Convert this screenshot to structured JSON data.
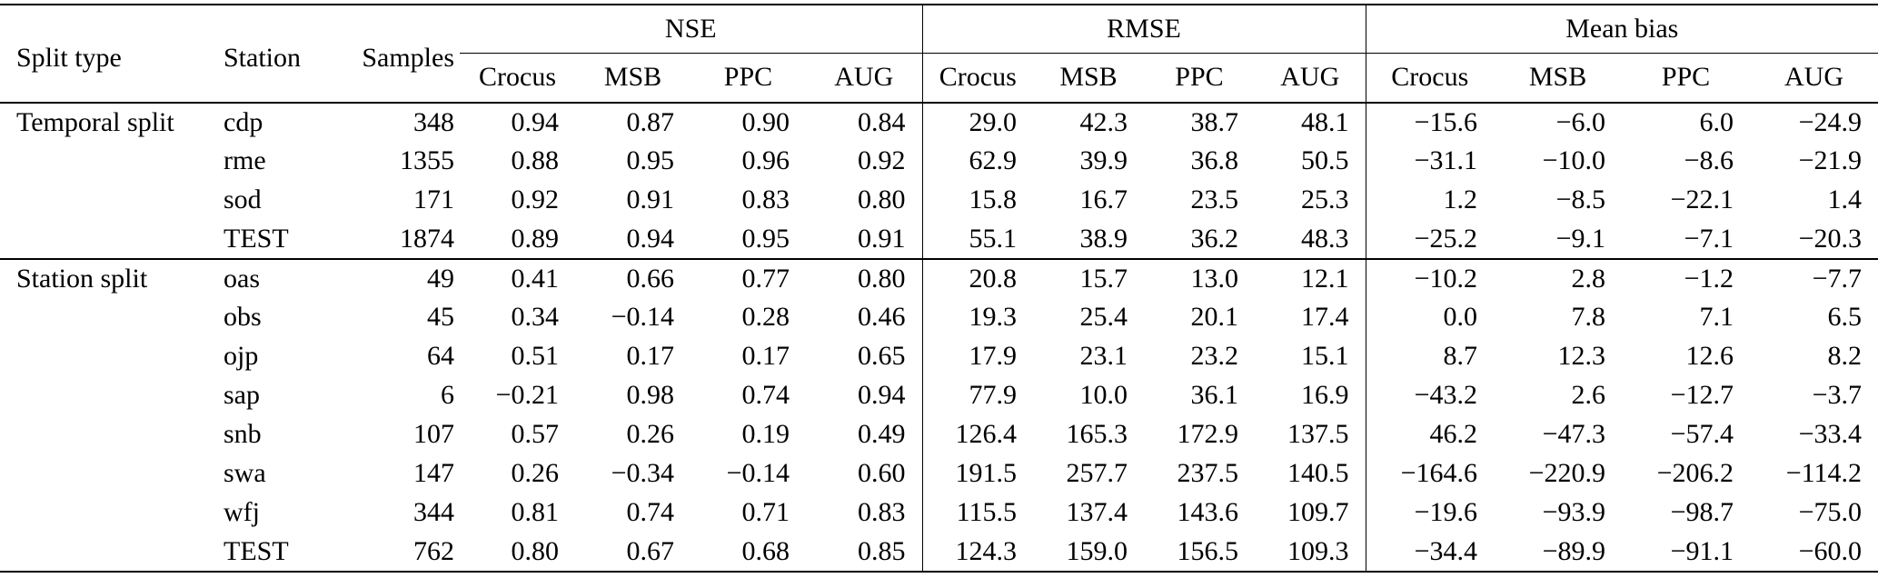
{
  "colors": {
    "text": "#000000",
    "background": "#ffffff",
    "rule": "#000000"
  },
  "table": {
    "header": {
      "split_type": "Split type",
      "station": "Station",
      "samples": "Samples",
      "groups": [
        {
          "label": "NSE",
          "cols": [
            "Crocus",
            "MSB",
            "PPC",
            "AUG"
          ]
        },
        {
          "label": "RMSE",
          "cols": [
            "Crocus",
            "MSB",
            "PPC",
            "AUG"
          ]
        },
        {
          "label": "Mean bias",
          "cols": [
            "Crocus",
            "MSB",
            "PPC",
            "AUG"
          ]
        }
      ]
    },
    "sections": [
      {
        "split_type": "Temporal split",
        "rows": [
          {
            "station": "cdp",
            "samples": "348",
            "values": [
              "0.94",
              "0.87",
              "0.90",
              "0.84",
              "29.0",
              "42.3",
              "38.7",
              "48.1",
              "−15.6",
              "−6.0",
              "6.0",
              "−24.9"
            ]
          },
          {
            "station": "rme",
            "samples": "1355",
            "values": [
              "0.88",
              "0.95",
              "0.96",
              "0.92",
              "62.9",
              "39.9",
              "36.8",
              "50.5",
              "−31.1",
              "−10.0",
              "−8.6",
              "−21.9"
            ]
          },
          {
            "station": "sod",
            "samples": "171",
            "values": [
              "0.92",
              "0.91",
              "0.83",
              "0.80",
              "15.8",
              "16.7",
              "23.5",
              "25.3",
              "1.2",
              "−8.5",
              "−22.1",
              "1.4"
            ]
          },
          {
            "station": "TEST",
            "samples": "1874",
            "values": [
              "0.89",
              "0.94",
              "0.95",
              "0.91",
              "55.1",
              "38.9",
              "36.2",
              "48.3",
              "−25.2",
              "−9.1",
              "−7.1",
              "−20.3"
            ]
          }
        ]
      },
      {
        "split_type": "Station split",
        "rows": [
          {
            "station": "oas",
            "samples": "49",
            "values": [
              "0.41",
              "0.66",
              "0.77",
              "0.80",
              "20.8",
              "15.7",
              "13.0",
              "12.1",
              "−10.2",
              "2.8",
              "−1.2",
              "−7.7"
            ]
          },
          {
            "station": "obs",
            "samples": "45",
            "values": [
              "0.34",
              "−0.14",
              "0.28",
              "0.46",
              "19.3",
              "25.4",
              "20.1",
              "17.4",
              "0.0",
              "7.8",
              "7.1",
              "6.5"
            ]
          },
          {
            "station": "ojp",
            "samples": "64",
            "values": [
              "0.51",
              "0.17",
              "0.17",
              "0.65",
              "17.9",
              "23.1",
              "23.2",
              "15.1",
              "8.7",
              "12.3",
              "12.6",
              "8.2"
            ]
          },
          {
            "station": "sap",
            "samples": "6",
            "values": [
              "−0.21",
              "0.98",
              "0.74",
              "0.94",
              "77.9",
              "10.0",
              "36.1",
              "16.9",
              "−43.2",
              "2.6",
              "−12.7",
              "−3.7"
            ]
          },
          {
            "station": "snb",
            "samples": "107",
            "values": [
              "0.57",
              "0.26",
              "0.19",
              "0.49",
              "126.4",
              "165.3",
              "172.9",
              "137.5",
              "46.2",
              "−47.3",
              "−57.4",
              "−33.4"
            ]
          },
          {
            "station": "swa",
            "samples": "147",
            "values": [
              "0.26",
              "−0.34",
              "−0.14",
              "0.60",
              "191.5",
              "257.7",
              "237.5",
              "140.5",
              "−164.6",
              "−220.9",
              "−206.2",
              "−114.2"
            ]
          },
          {
            "station": "wfj",
            "samples": "344",
            "values": [
              "0.81",
              "0.74",
              "0.71",
              "0.83",
              "115.5",
              "137.4",
              "143.6",
              "109.7",
              "−19.6",
              "−93.9",
              "−98.7",
              "−75.0"
            ]
          },
          {
            "station": "TEST",
            "samples": "762",
            "values": [
              "0.80",
              "0.67",
              "0.68",
              "0.85",
              "124.3",
              "159.0",
              "156.5",
              "109.3",
              "−34.4",
              "−89.9",
              "−91.1",
              "−60.0"
            ]
          }
        ]
      }
    ]
  }
}
